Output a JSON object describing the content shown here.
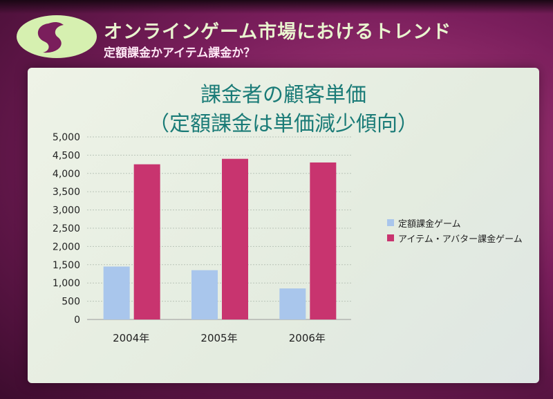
{
  "header": {
    "title": "オンラインゲーム市場におけるトレンド",
    "subtitle": "定額課金かアイテム課金か？"
  },
  "colors": {
    "title_text": "#e9f4cf",
    "chart_title": "#1a7b77",
    "series_flat": "#a9c6ec",
    "series_item": "#c8346f"
  },
  "chart_data": {
    "type": "bar",
    "title": "課金者の顧客単価",
    "subtitle": "（定額課金は単価減少傾向）",
    "categories": [
      "2004年",
      "2005年",
      "2006年"
    ],
    "series": [
      {
        "name": "定額課金ゲーム",
        "values": [
          1450,
          1350,
          850
        ],
        "color": "#a9c6ec"
      },
      {
        "name": "アイテム・アバター課金ゲーム",
        "values": [
          4250,
          4400,
          4300
        ],
        "color": "#c8346f"
      }
    ],
    "ylim": [
      0,
      5000
    ],
    "yticks": [
      "0",
      "500",
      "1,000",
      "1,500",
      "2,000",
      "2,500",
      "3,000",
      "3,500",
      "4,000",
      "4,500",
      "5,000"
    ],
    "ytick_values": [
      0,
      500,
      1000,
      1500,
      2000,
      2500,
      3000,
      3500,
      4000,
      4500,
      5000
    ],
    "grid": true,
    "legend_position": "right"
  }
}
